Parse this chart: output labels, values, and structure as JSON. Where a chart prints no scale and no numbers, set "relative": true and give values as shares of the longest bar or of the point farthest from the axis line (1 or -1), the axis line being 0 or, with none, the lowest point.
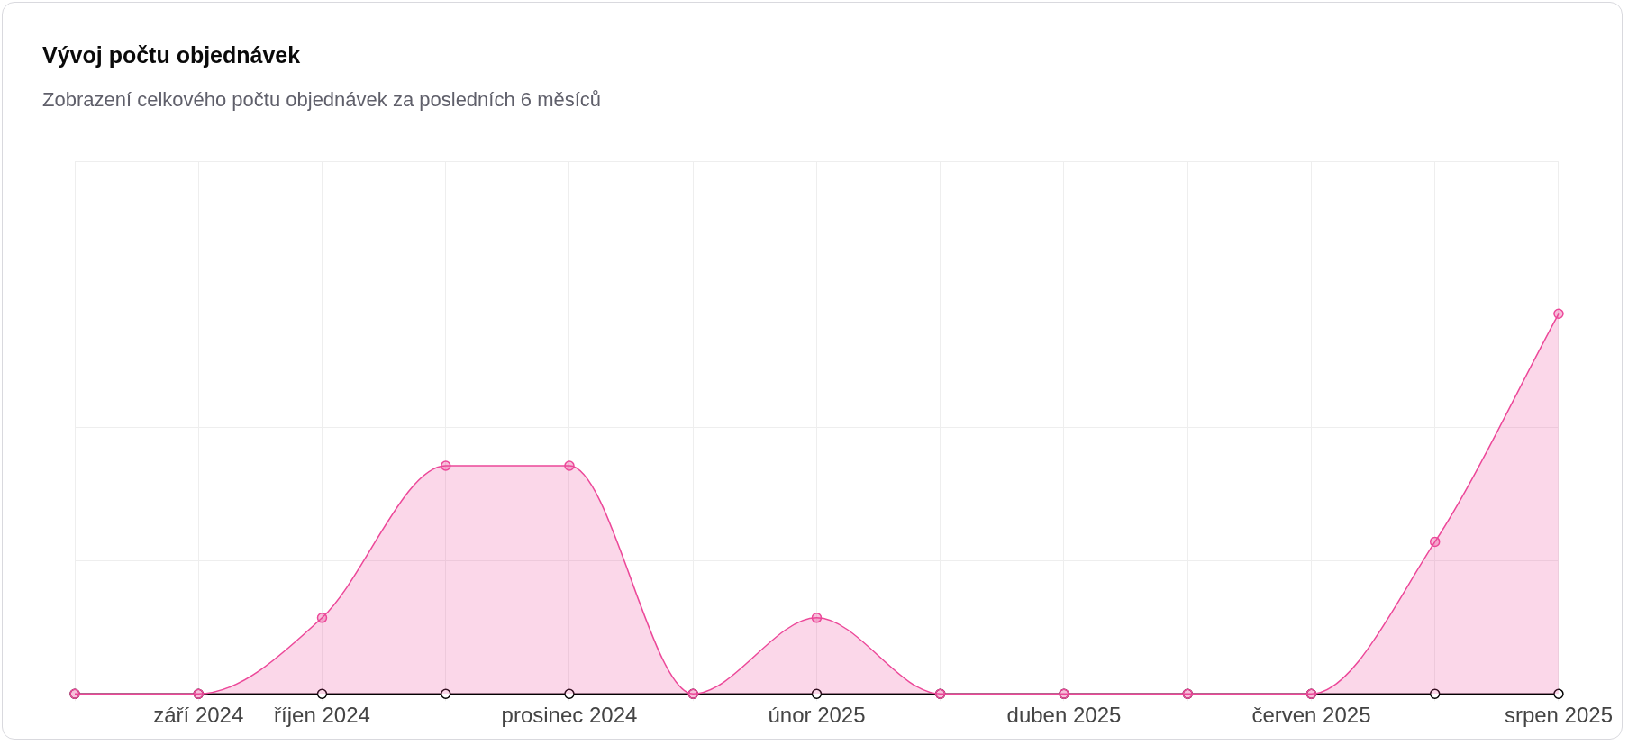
{
  "chart_data": {
    "type": "area",
    "title": "Vývoj počtu objednávek",
    "subtitle": "Zobrazení celkového počtu objednávek za posledních 6 měsíců",
    "categories": [
      null,
      "září 2024",
      "říjen 2024",
      null,
      "prosinec 2024",
      null,
      "únor 2025",
      null,
      "duben 2025",
      null,
      "červen 2025",
      null,
      "srpen 2025"
    ],
    "relative": true,
    "grid": true,
    "legend": false,
    "marker": "circle",
    "series": [
      {
        "type": "line",
        "color": "#000000",
        "values": [
          0,
          0,
          0,
          0,
          0,
          0,
          0,
          0,
          0,
          0,
          0,
          0,
          0
        ]
      },
      {
        "type": "area",
        "color": "#ec4899",
        "values": [
          0,
          0,
          0.2,
          0.6,
          0.6,
          0,
          0.2,
          0,
          0,
          0,
          0,
          0.4,
          1
        ]
      }
    ]
  }
}
